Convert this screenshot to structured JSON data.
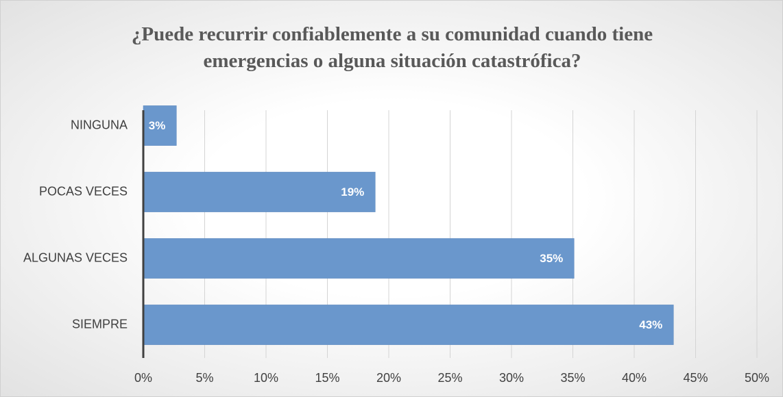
{
  "chart_data": {
    "type": "bar",
    "orientation": "horizontal",
    "title": "¿Puede recurrir confiablemente a su comunidad cuando tiene emergencias o alguna situación catastrófica?",
    "categories": [
      "NINGUNA",
      "POCAS VECES",
      "ALGUNAS VECES",
      "SIEMPRE"
    ],
    "values": [
      2.7,
      18.9,
      35.1,
      43.2
    ],
    "value_labels": [
      "3%",
      "19%",
      "35%",
      "43%"
    ],
    "color": "#6a97cc",
    "xlim": [
      0,
      50
    ],
    "xticks": [
      {
        "value": 0,
        "label": "0%"
      },
      {
        "value": 5,
        "label": "5%"
      },
      {
        "value": 10,
        "label": "10%"
      },
      {
        "value": 15,
        "label": "15%"
      },
      {
        "value": 20,
        "label": "20%"
      },
      {
        "value": 25,
        "label": "25%"
      },
      {
        "value": 30,
        "label": "30%"
      },
      {
        "value": 35,
        "label": "35%"
      },
      {
        "value": 40,
        "label": "40%"
      },
      {
        "value": 45,
        "label": "45%"
      },
      {
        "value": 50,
        "label": "50%"
      }
    ],
    "grid": true
  }
}
